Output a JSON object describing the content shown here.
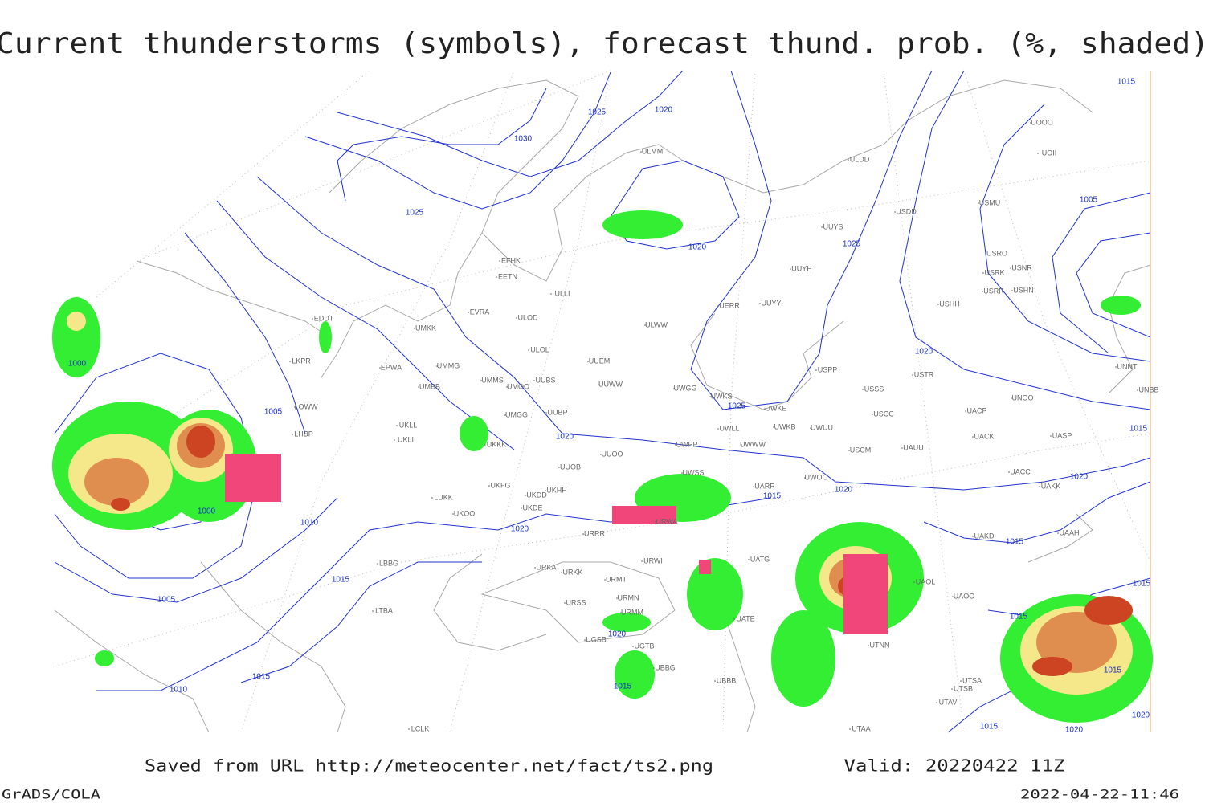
{
  "header": {
    "title": "Current thunderstorms (symbols), forecast thund. prob. (%, shaded)"
  },
  "map": {
    "isobar_labels": [
      1015,
      1020,
      1025,
      1030,
      1025,
      1020,
      1005,
      1025,
      1000,
      1005,
      1020,
      1025,
      1020,
      1015,
      1020,
      1015,
      1020,
      1000,
      1010,
      1020,
      1015,
      1015,
      1005,
      1015,
      1020,
      1015,
      1015,
      1015,
      1015,
      1010,
      1015,
      1020,
      1020
    ],
    "station_labels": [
      "UUYS",
      "UUYH",
      "UUYY",
      "ULDD",
      "USDD",
      "USMU",
      "UOOO",
      "UOII",
      "USRO",
      "USRK",
      "USNR",
      "USRR",
      "USHN",
      "USHH",
      "ULMM",
      "EFHK",
      "EETN",
      "ULLI",
      "EVRA",
      "ULOD",
      "UMKK",
      "ULOL",
      "UUEM",
      "ULWW",
      "EPWA",
      "UMMG",
      "UMMS",
      "UMOO",
      "UUBS",
      "UUWW",
      "UWGG",
      "UWKS",
      "UWKE",
      "UMBB",
      "UMGG",
      "UUBP",
      "LKPR",
      "LOWW",
      "LHBP",
      "UKLL",
      "UKLI",
      "UKKK",
      "UUOO",
      "UUOB",
      "UWPP",
      "UWWW",
      "UWLL",
      "UWKB",
      "UWUU",
      "USSS",
      "USTR",
      "USCC",
      "USCM",
      "UAUU",
      "UACP",
      "UACK",
      "UASP",
      "UNOO",
      "UNNT",
      "UNBB",
      "UACC",
      "UAKK",
      "UAKD",
      "UAAH",
      "UAOO",
      "UAOL",
      "UATG",
      "UATE",
      "UTNN",
      "UTSA",
      "UTSB",
      "UTAV",
      "UTAA",
      "UBBB",
      "URWA",
      "URRR",
      "URWI",
      "URMT",
      "URMN",
      "URMM",
      "UGTB",
      "UGSB",
      "UBBG",
      "UKOO",
      "LUKK",
      "UKDE",
      "UKDD",
      "UKHH",
      "UKFG",
      "LBBG",
      "URKA",
      "URKK",
      "URSS",
      "LTBA",
      "UWSS",
      "UARR",
      "UWOO",
      "LCLK",
      "EDDT",
      "UERR",
      "USPP"
    ]
  },
  "footer": {
    "source": "Saved from URL http://meteocenter.net/fact/ts2.png",
    "valid": "Valid: 20220422 11Z",
    "software": "GrADS/COLA",
    "timestamp": "2022-04-22-11:46"
  }
}
